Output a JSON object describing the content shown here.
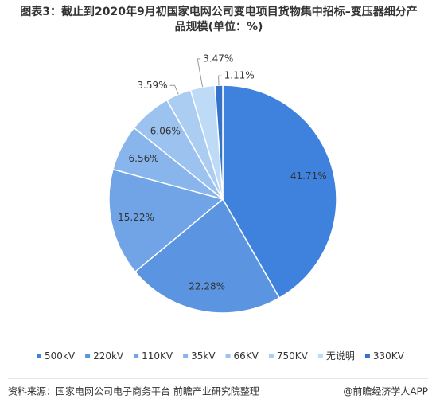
{
  "chart_data": {
    "type": "pie",
    "title": "图表3：截止到2020年9月初国家电网公司变电项目货物集中招标–变压器细分产品规模(单位：%)",
    "categories": [
      "500kV",
      "220kV",
      "110KV",
      "35kV",
      "66KV",
      "750KV",
      "无说明",
      "330KV"
    ],
    "values": [
      41.71,
      22.28,
      15.22,
      6.56,
      6.06,
      3.59,
      3.47,
      1.11
    ],
    "value_labels": [
      "41.71%",
      "22.28%",
      "15.22%",
      "6.56%",
      "6.06%",
      "3.59%",
      "3.47%",
      "1.11%"
    ],
    "colors": [
      "#3f82de",
      "#5b95e2",
      "#70a4e7",
      "#88b5ec",
      "#9cc2f0",
      "#abcdf2",
      "#bddbf6",
      "#3573cb"
    ],
    "source": "资料来源：国家电网公司电子商务平台 前瞻产业研究院整理",
    "brand": "@前瞻经济学人APP"
  }
}
